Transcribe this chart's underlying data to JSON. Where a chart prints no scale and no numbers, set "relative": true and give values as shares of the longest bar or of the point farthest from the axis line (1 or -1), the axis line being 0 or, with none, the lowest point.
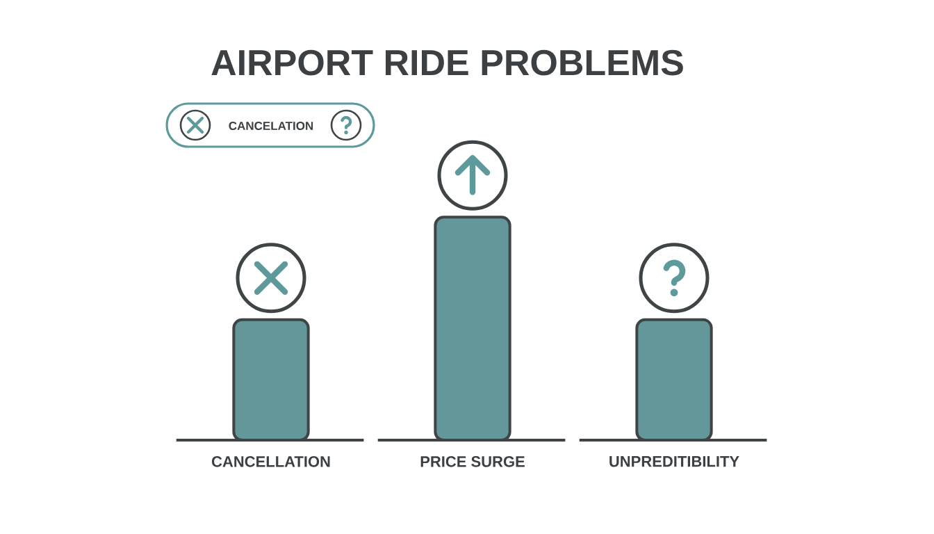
{
  "chart_data": {
    "type": "bar",
    "title": "AIRPORT RIDE PROBLEMS",
    "categories": [
      "CANCELLATION",
      "PRICE SURGE",
      "UNPREDITIBILITY"
    ],
    "values": [
      0.54,
      1,
      0.54
    ],
    "color": "#63979a",
    "relative": true,
    "annotations": [
      "CANCELATION"
    ]
  }
}
